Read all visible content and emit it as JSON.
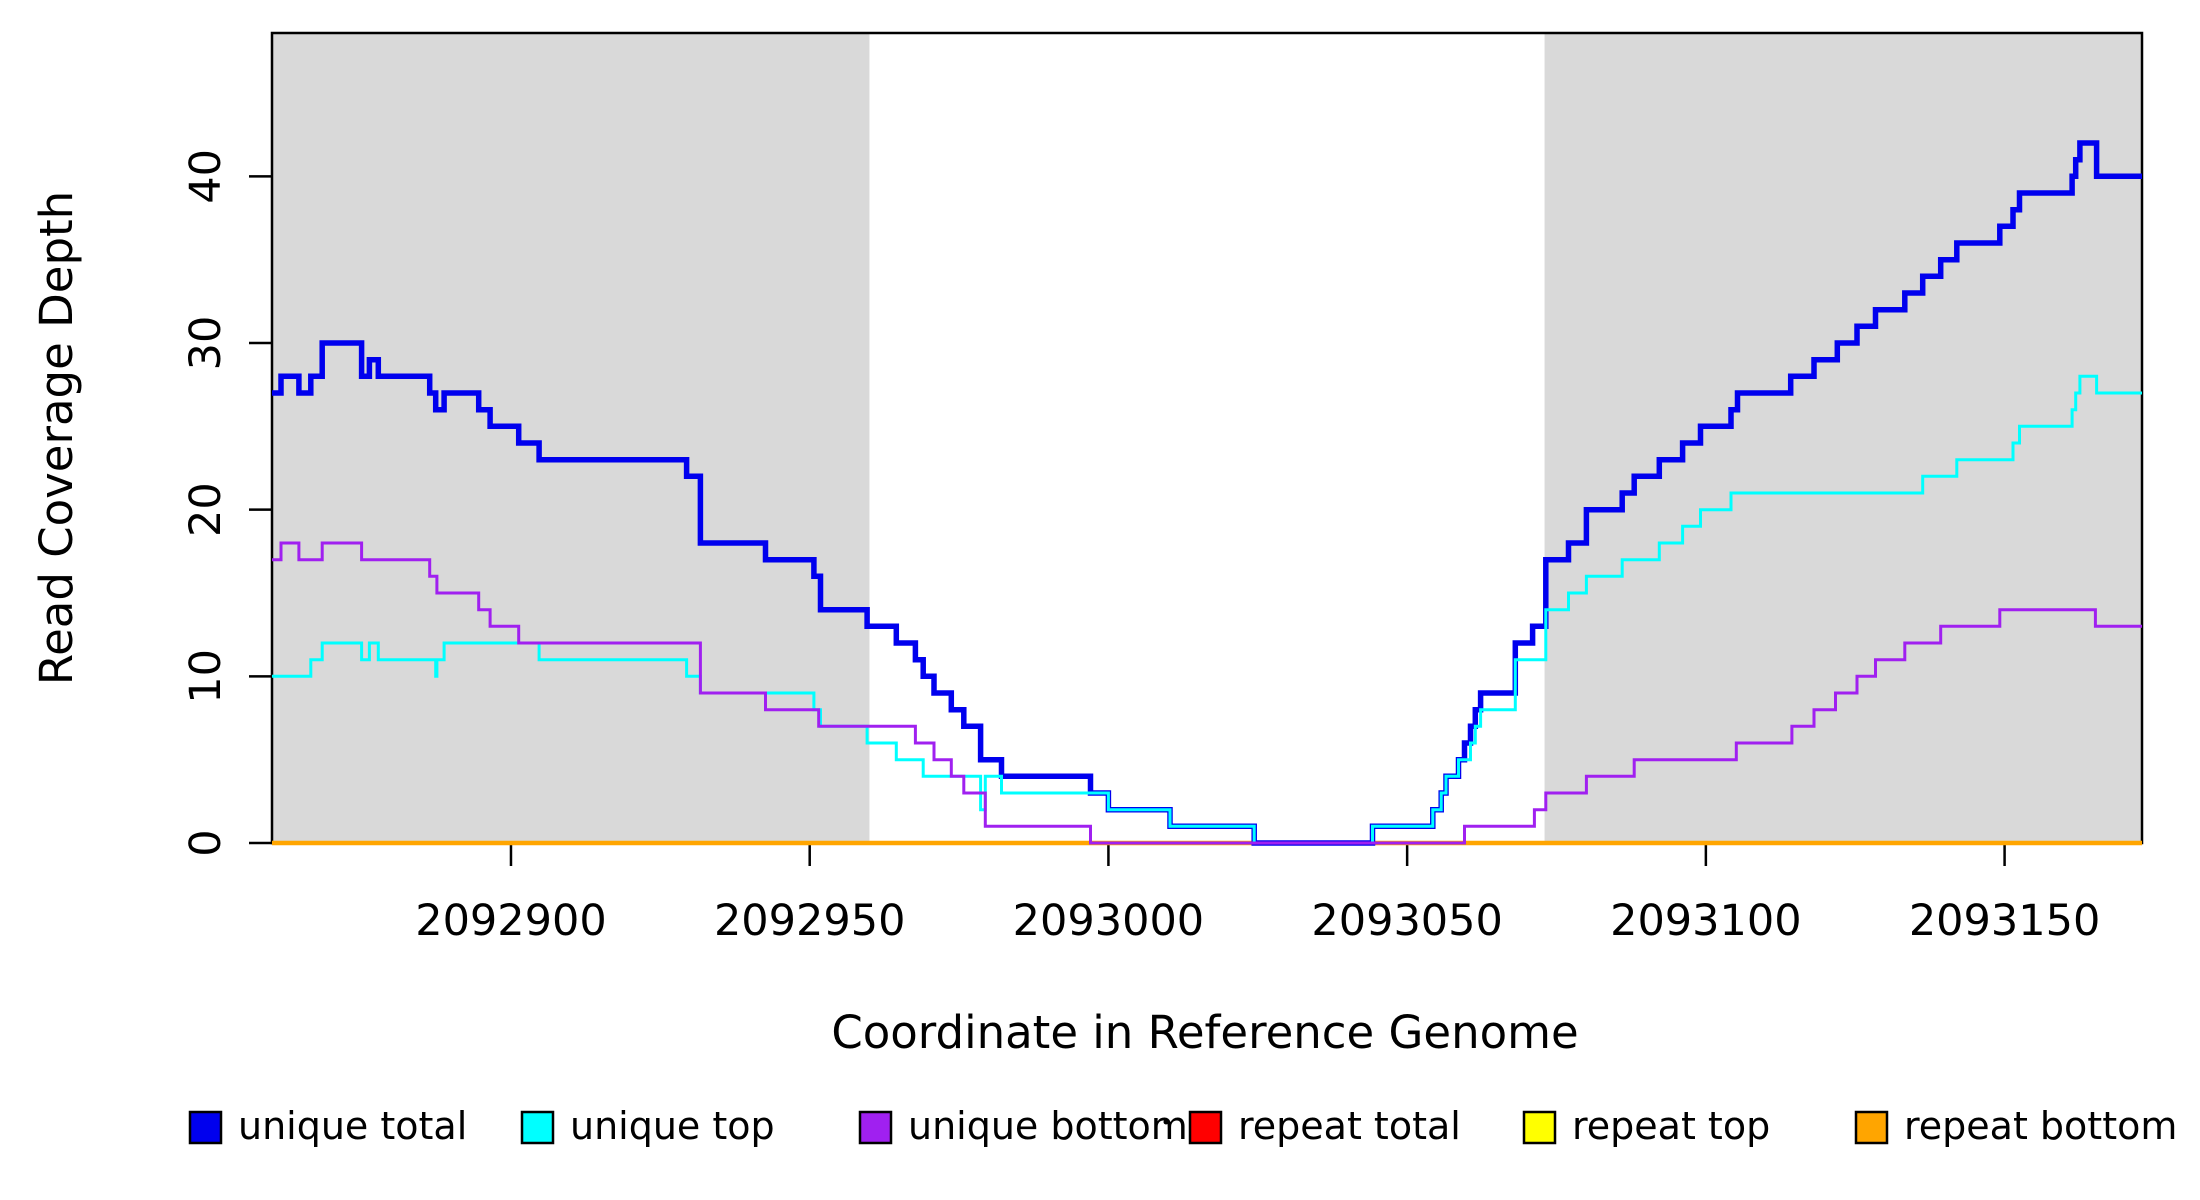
{
  "figure": {
    "background": "#ffffff",
    "plot_background": "#ffffff",
    "shade_color": "#d9d9d9",
    "axis_color": "#000000"
  },
  "chart_data": {
    "type": "line",
    "subtype": "step-after-coverage-plot",
    "title": "",
    "xlabel": "Coordinate in Reference Genome",
    "ylabel": "Read Coverage Depth",
    "xlim": [
      2092860,
      2093173
    ],
    "ylim": [
      0,
      48.6
    ],
    "grid": false,
    "legend_position": "bottom",
    "x_ticks": [
      {
        "value": 2092900,
        "label": "2092900"
      },
      {
        "value": 2092950,
        "label": "2092950"
      },
      {
        "value": 2093000,
        "label": "2093000"
      },
      {
        "value": 2093050,
        "label": "2093050"
      },
      {
        "value": 2093100,
        "label": "2093100"
      },
      {
        "value": 2093150,
        "label": "2093150"
      }
    ],
    "y_ticks": [
      {
        "value": 0,
        "label": "0"
      },
      {
        "value": 10,
        "label": "10"
      },
      {
        "value": 20,
        "label": "20"
      },
      {
        "value": 30,
        "label": "30"
      },
      {
        "value": 40,
        "label": "40"
      }
    ],
    "shaded_regions": [
      {
        "name": "left-gray-region",
        "x0": 2092860,
        "x1": 2092960
      },
      {
        "name": "right-gray-region",
        "x0": 2093073,
        "x1": 2093173
      }
    ],
    "draw_order": [
      "repeat-total",
      "repeat-top",
      "repeat-bottom",
      "unique-total",
      "unique-top",
      "unique-bottom"
    ],
    "series": [
      {
        "key": "unique-total",
        "name": "unique total",
        "color": "#0000ee",
        "line_width": 5.5,
        "steps": [
          [
            2092860,
            27
          ],
          [
            2092861.5,
            28
          ],
          [
            2092864.5,
            27
          ],
          [
            2092866.5,
            28
          ],
          [
            2092868.4,
            30
          ],
          [
            2092875,
            28
          ],
          [
            2092876.3,
            29
          ],
          [
            2092877.8,
            28
          ],
          [
            2092886.4,
            27
          ],
          [
            2092887.4,
            26
          ],
          [
            2092888.8,
            27
          ],
          [
            2092894.6,
            26
          ],
          [
            2092896.5,
            25
          ],
          [
            2092901.3,
            24
          ],
          [
            2092904.7,
            23
          ],
          [
            2092929.4,
            22
          ],
          [
            2092931.7,
            18
          ],
          [
            2092942.6,
            17
          ],
          [
            2092950.7,
            16
          ],
          [
            2092951.8,
            14
          ],
          [
            2092959.6,
            13
          ],
          [
            2092964.5,
            12
          ],
          [
            2092967.7,
            11
          ],
          [
            2092969,
            10
          ],
          [
            2092970.8,
            9
          ],
          [
            2092973.7,
            8
          ],
          [
            2092975.8,
            7
          ],
          [
            2092978.6,
            5
          ],
          [
            2092982.1,
            4
          ],
          [
            2092997,
            3
          ],
          [
            2093000,
            2
          ],
          [
            2093010.3,
            1
          ],
          [
            2093024.4,
            0
          ],
          [
            2093044.2,
            1
          ],
          [
            2093054.3,
            2
          ],
          [
            2093055.7,
            3
          ],
          [
            2093056.5,
            4
          ],
          [
            2093058.6,
            5
          ],
          [
            2093059.6,
            6
          ],
          [
            2093060.6,
            7
          ],
          [
            2093061.4,
            8
          ],
          [
            2093062.3,
            9
          ],
          [
            2093068.1,
            12
          ],
          [
            2093071,
            13
          ],
          [
            2093073.2,
            17
          ],
          [
            2093077,
            18
          ],
          [
            2093080,
            20
          ],
          [
            2093086,
            21
          ],
          [
            2093088,
            22
          ],
          [
            2093092.2,
            23
          ],
          [
            2093096.1,
            24
          ],
          [
            2093099.1,
            25
          ],
          [
            2093104.2,
            26
          ],
          [
            2093105.3,
            27
          ],
          [
            2093114.2,
            28
          ],
          [
            2093118.1,
            29
          ],
          [
            2093122,
            30
          ],
          [
            2093125.3,
            31
          ],
          [
            2093128.4,
            32
          ],
          [
            2093133.3,
            33
          ],
          [
            2093136.3,
            34
          ],
          [
            2093139.3,
            35
          ],
          [
            2093142,
            36
          ],
          [
            2093149.2,
            37
          ],
          [
            2093151.4,
            38
          ],
          [
            2093152.5,
            39
          ],
          [
            2093161.3,
            40
          ],
          [
            2093161.9,
            41
          ],
          [
            2093162.6,
            42
          ],
          [
            2093165.4,
            40
          ]
        ]
      },
      {
        "key": "unique-top",
        "name": "unique top",
        "color": "#00ffff",
        "line_width": 3,
        "steps": [
          [
            2092860,
            10
          ],
          [
            2092866.5,
            11
          ],
          [
            2092868.4,
            12
          ],
          [
            2092875,
            11
          ],
          [
            2092876.3,
            12
          ],
          [
            2092877.8,
            11
          ],
          [
            2092887.4,
            10
          ],
          [
            2092887.6,
            11
          ],
          [
            2092888.8,
            12
          ],
          [
            2092904.7,
            11
          ],
          [
            2092929.4,
            10
          ],
          [
            2092931.7,
            9
          ],
          [
            2092950.7,
            8
          ],
          [
            2092951.8,
            7
          ],
          [
            2092959.6,
            6
          ],
          [
            2092964.5,
            5
          ],
          [
            2092969,
            4
          ],
          [
            2092978.6,
            2
          ],
          [
            2092979.4,
            4
          ],
          [
            2092982.1,
            3
          ],
          [
            2093000,
            2
          ],
          [
            2093010.3,
            1
          ],
          [
            2093024.4,
            0
          ],
          [
            2093044.2,
            1
          ],
          [
            2093054.3,
            2
          ],
          [
            2093055.7,
            3
          ],
          [
            2093056.5,
            4
          ],
          [
            2093058.6,
            5
          ],
          [
            2093060.6,
            6
          ],
          [
            2093061.4,
            7
          ],
          [
            2093062.3,
            8
          ],
          [
            2093068.1,
            11
          ],
          [
            2093073.2,
            14
          ],
          [
            2093077,
            15
          ],
          [
            2093080,
            16
          ],
          [
            2093086,
            17
          ],
          [
            2093092.2,
            18
          ],
          [
            2093096.1,
            19
          ],
          [
            2093099.1,
            20
          ],
          [
            2093104.2,
            21
          ],
          [
            2093136.3,
            22
          ],
          [
            2093142,
            23
          ],
          [
            2093151.4,
            24
          ],
          [
            2093152.5,
            25
          ],
          [
            2093161.3,
            26
          ],
          [
            2093161.9,
            27
          ],
          [
            2093162.6,
            28
          ],
          [
            2093165.4,
            27
          ]
        ]
      },
      {
        "key": "unique-bottom",
        "name": "unique bottom",
        "color": "#a020f0",
        "line_width": 3,
        "steps": [
          [
            2092860,
            17
          ],
          [
            2092861.5,
            18
          ],
          [
            2092864.5,
            17
          ],
          [
            2092868.4,
            18
          ],
          [
            2092875,
            17
          ],
          [
            2092886.4,
            16
          ],
          [
            2092887.6,
            15
          ],
          [
            2092894.6,
            14
          ],
          [
            2092896.5,
            13
          ],
          [
            2092901.3,
            12
          ],
          [
            2092931.7,
            9
          ],
          [
            2092942.6,
            8
          ],
          [
            2092951.5,
            7
          ],
          [
            2092967.7,
            6
          ],
          [
            2092970.8,
            5
          ],
          [
            2092973.7,
            4
          ],
          [
            2092975.8,
            3
          ],
          [
            2092979.4,
            1
          ],
          [
            2092997,
            0
          ],
          [
            2093059.6,
            1
          ],
          [
            2093071.3,
            2
          ],
          [
            2093073.2,
            3
          ],
          [
            2093080,
            4
          ],
          [
            2093088,
            5
          ],
          [
            2093105.1,
            6
          ],
          [
            2093114.4,
            7
          ],
          [
            2093118.1,
            8
          ],
          [
            2093121.7,
            9
          ],
          [
            2093125.3,
            10
          ],
          [
            2093128.4,
            11
          ],
          [
            2093133.3,
            12
          ],
          [
            2093139.3,
            13
          ],
          [
            2093149.2,
            14
          ],
          [
            2093165.2,
            13
          ]
        ]
      },
      {
        "key": "repeat-total",
        "name": "repeat total",
        "color": "#ff0000",
        "line_width": 3,
        "steps": [
          [
            2092860,
            0
          ]
        ]
      },
      {
        "key": "repeat-top",
        "name": "repeat top",
        "color": "#ffff00",
        "line_width": 3,
        "steps": [
          [
            2092860,
            0
          ]
        ]
      },
      {
        "key": "repeat-bottom",
        "name": "repeat bottom",
        "color": "#ffa500",
        "line_width": 4.5,
        "steps": [
          [
            2092860,
            0
          ]
        ]
      }
    ]
  },
  "legend": {
    "items": [
      {
        "key": "unique-total",
        "label": "unique total",
        "color": "#0000ee"
      },
      {
        "key": "unique-top",
        "label": "unique top",
        "color": "#00ffff"
      },
      {
        "key": "unique-bottom",
        "label": "unique bottom",
        "color": "#a020f0"
      },
      {
        "key": "repeat-total",
        "label": "repeat total",
        "color": "#ff0000"
      },
      {
        "key": "repeat-top",
        "label": "repeat top",
        "color": "#ffff00"
      },
      {
        "key": "repeat-bottom",
        "label": "repeat bottom",
        "color": "#ffa500"
      }
    ],
    "marker": "filled-square-black-border",
    "stray_dot": {
      "present": true
    }
  }
}
